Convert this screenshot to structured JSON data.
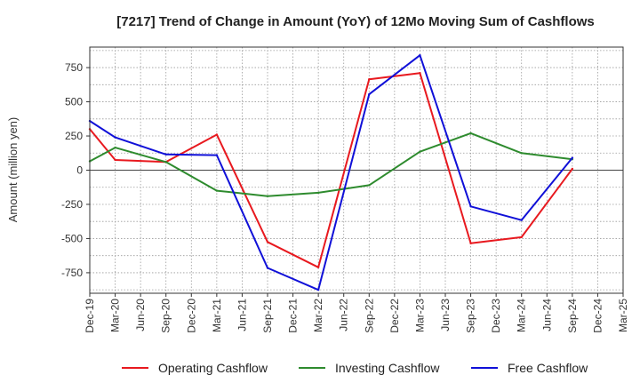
{
  "chart_data": {
    "type": "line",
    "title": "[7217]  Trend of Change in Amount (YoY) of 12Mo Moving Sum of Cashflows",
    "xlabel": "",
    "ylabel": "Amount (million yen)",
    "ylim": [
      -900,
      900
    ],
    "yticks": [
      750,
      500,
      250,
      0,
      -250,
      -500,
      -750
    ],
    "ytick_labels": [
      "750",
      "500",
      "250",
      "0",
      "-250",
      "-500",
      "-750"
    ],
    "categories": [
      "Dec-19",
      "Mar-20",
      "Jun-20",
      "Sep-20",
      "Dec-20",
      "Mar-21",
      "Jun-21",
      "Sep-21",
      "Dec-21",
      "Mar-22",
      "Jun-22",
      "Sep-22",
      "Dec-22",
      "Mar-23",
      "Jun-23",
      "Sep-23",
      "Dec-23",
      "Mar-24",
      "Jun-24",
      "Sep-24",
      "Dec-24",
      "Mar-25"
    ],
    "grid": true,
    "legend_position": "bottom",
    "series": [
      {
        "name": "Operating Cashflow",
        "color": "#e8191f",
        "values": [
          300,
          75,
          null,
          60,
          null,
          260,
          null,
          -525,
          null,
          -710,
          null,
          665,
          null,
          710,
          null,
          -535,
          null,
          -490,
          null,
          10,
          null,
          null
        ]
      },
      {
        "name": "Investing Cashflow",
        "color": "#2e8b2e",
        "values": [
          65,
          165,
          null,
          60,
          null,
          -150,
          null,
          -190,
          null,
          -165,
          null,
          -110,
          null,
          135,
          null,
          270,
          null,
          125,
          null,
          80,
          null,
          null
        ]
      },
      {
        "name": "Free Cashflow",
        "color": "#1010d8",
        "values": [
          360,
          240,
          null,
          115,
          null,
          110,
          null,
          -715,
          null,
          -875,
          null,
          555,
          null,
          840,
          null,
          -265,
          null,
          -365,
          null,
          90,
          null,
          null
        ]
      }
    ]
  }
}
